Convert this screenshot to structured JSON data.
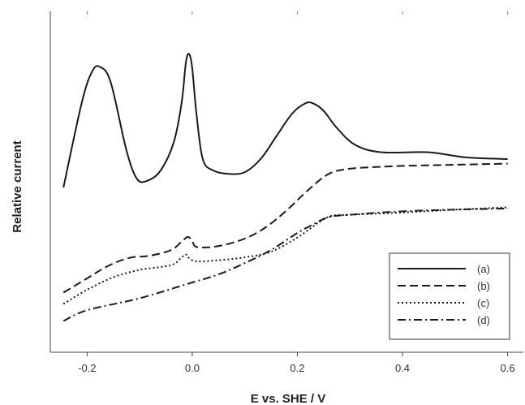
{
  "chart_data": {
    "type": "line",
    "xlabel": "E vs. SHE / V",
    "ylabel": "Relative current",
    "xlim": [
      -0.27,
      0.63
    ],
    "ylim": [
      -0.4,
      5.6
    ],
    "x_ticks": [
      "-0.2",
      "0.0",
      "0.2",
      "0.4",
      "0.6"
    ],
    "y_tick_labels_shown": false,
    "grid": false,
    "legend_position": "bottom-right",
    "series": [
      {
        "name": "(a)",
        "style": "solid",
        "x": [
          -0.245,
          -0.21,
          -0.19,
          -0.175,
          -0.155,
          -0.125,
          -0.105,
          -0.085,
          -0.06,
          -0.035,
          -0.02,
          -0.012,
          -0.006,
          0.0,
          0.008,
          0.02,
          0.04,
          0.07,
          0.1,
          0.13,
          0.16,
          0.19,
          0.215,
          0.23,
          0.25,
          0.275,
          0.31,
          0.36,
          0.45,
          0.52,
          0.6
        ],
        "values": [
          2.5,
          4.0,
          4.55,
          4.62,
          4.35,
          3.15,
          2.65,
          2.62,
          2.8,
          3.3,
          4.0,
          4.7,
          4.85,
          4.6,
          3.8,
          3.0,
          2.8,
          2.74,
          2.77,
          3.0,
          3.4,
          3.8,
          3.98,
          3.98,
          3.85,
          3.55,
          3.25,
          3.12,
          3.12,
          3.03,
          3.0
        ]
      },
      {
        "name": "(b)",
        "style": "dashed",
        "x": [
          -0.245,
          -0.2,
          -0.16,
          -0.12,
          -0.08,
          -0.04,
          -0.02,
          -0.008,
          0.0,
          0.01,
          0.05,
          0.1,
          0.14,
          0.18,
          0.22,
          0.26,
          0.3,
          0.35,
          0.4,
          0.5,
          0.6
        ],
        "values": [
          0.65,
          0.9,
          1.12,
          1.26,
          1.3,
          1.4,
          1.55,
          1.63,
          1.55,
          1.45,
          1.47,
          1.6,
          1.8,
          2.1,
          2.45,
          2.74,
          2.83,
          2.86,
          2.88,
          2.9,
          2.92
        ]
      },
      {
        "name": "(c)",
        "style": "dotted",
        "x": [
          -0.245,
          -0.2,
          -0.15,
          -0.1,
          -0.06,
          -0.035,
          -0.02,
          -0.012,
          -0.005,
          0.01,
          0.05,
          0.1,
          0.15,
          0.2,
          0.24,
          0.265,
          0.3,
          0.4,
          0.5,
          0.6
        ],
        "values": [
          0.45,
          0.7,
          0.92,
          1.05,
          1.1,
          1.15,
          1.27,
          1.32,
          1.25,
          1.2,
          1.22,
          1.27,
          1.37,
          1.62,
          1.88,
          2.0,
          2.02,
          2.06,
          2.11,
          2.15
        ]
      },
      {
        "name": "(d)",
        "style": "dash-dot",
        "x": [
          -0.245,
          -0.2,
          -0.1,
          -0.01,
          0.05,
          0.1,
          0.15,
          0.2,
          0.23,
          0.26,
          0.3,
          0.4,
          0.5,
          0.6
        ],
        "values": [
          0.15,
          0.34,
          0.55,
          0.8,
          0.97,
          1.17,
          1.4,
          1.7,
          1.85,
          1.98,
          2.02,
          2.08,
          2.11,
          2.13
        ]
      }
    ]
  }
}
